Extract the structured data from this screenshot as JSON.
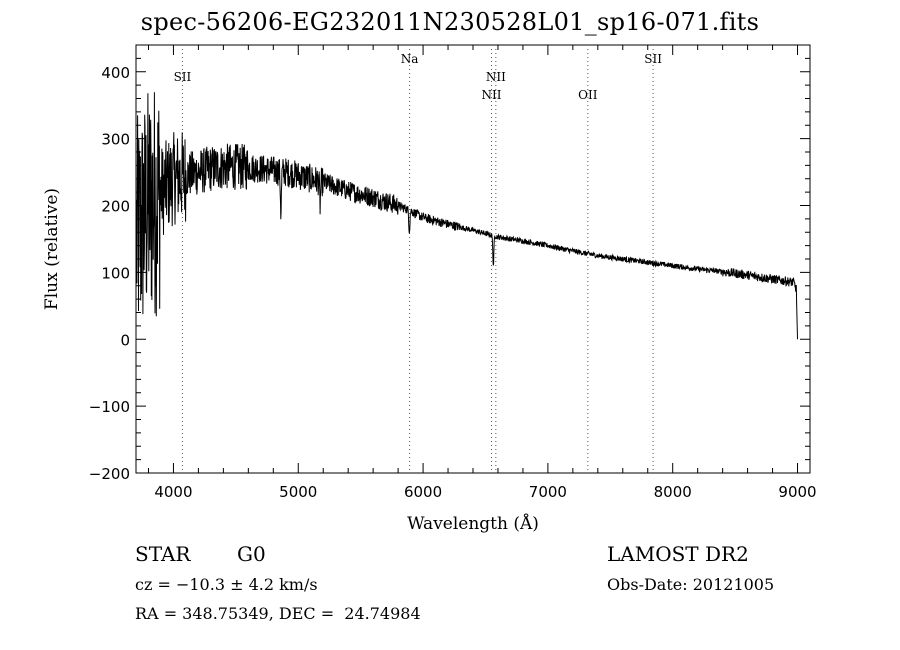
{
  "title": "spec-56206-EG232011N230528L01_sp16-071.fits",
  "info": {
    "object_class": "STAR",
    "subclass": "G0",
    "survey": "LAMOST DR2",
    "cz": "cz = −10.3 ± 4.2 km/s",
    "obs_date": "Obs-Date: 20121005",
    "coords": "RA = 348.75349, DEC =  24.74984"
  },
  "chart_data": {
    "type": "line",
    "title": "spec-56206-EG232011N230528L01_sp16-071.fits",
    "xlabel": "Wavelength (Å)",
    "ylabel": "Flux (relative)",
    "xlim": [
      3700,
      9100
    ],
    "ylim": [
      -200,
      440
    ],
    "x_ticks": [
      4000,
      5000,
      6000,
      7000,
      8000,
      9000
    ],
    "y_ticks": [
      -200,
      -100,
      0,
      100,
      200,
      300,
      400
    ],
    "tick_labels_x": [
      "4000",
      "5000",
      "6000",
      "7000",
      "8000",
      "9000"
    ],
    "tick_labels_y": [
      "−200",
      "−100",
      "0",
      "100",
      "200",
      "300",
      "400"
    ],
    "line_color": "#000000",
    "grid": false,
    "spectrum_continuum": {
      "wavelength": [
        3700,
        3800,
        3900,
        4000,
        4100,
        4200,
        4300,
        4400,
        4500,
        4600,
        4700,
        4800,
        4900,
        5000,
        5200,
        5400,
        5600,
        5800,
        5900,
        6000,
        6200,
        6400,
        6600,
        6800,
        7000,
        7200,
        7400,
        7600,
        7800,
        8000,
        8200,
        8400,
        8600,
        8800,
        8970,
        8990,
        9000
      ],
      "flux": [
        150,
        200,
        220,
        240,
        245,
        250,
        255,
        258,
        258,
        257,
        255,
        252,
        250,
        245,
        235,
        222,
        212,
        200,
        192,
        182,
        172,
        163,
        153,
        147,
        140,
        132,
        125,
        120,
        115,
        110,
        105,
        101,
        96,
        90,
        85,
        75,
        0
      ]
    },
    "absorption_features": [
      {
        "wavelength": 4861,
        "depth": 60
      },
      {
        "wavelength": 5175,
        "depth": 35
      },
      {
        "wavelength": 5890,
        "depth": 30
      },
      {
        "wavelength": 6563,
        "depth": 45
      }
    ],
    "spectral_lines": [
      {
        "label": "SII",
        "wavelength": 4072,
        "label_row": 1
      },
      {
        "label": "Na",
        "wavelength": 5892,
        "label_row": 0
      },
      {
        "label": "NII",
        "wavelength": 6548,
        "label_row": 2
      },
      {
        "label": "NII",
        "wavelength": 6583,
        "label_row": 1
      },
      {
        "label": "OII",
        "wavelength": 7320,
        "label_row": 2
      },
      {
        "label": "SII",
        "wavelength": 7843,
        "label_row": 0
      }
    ]
  }
}
